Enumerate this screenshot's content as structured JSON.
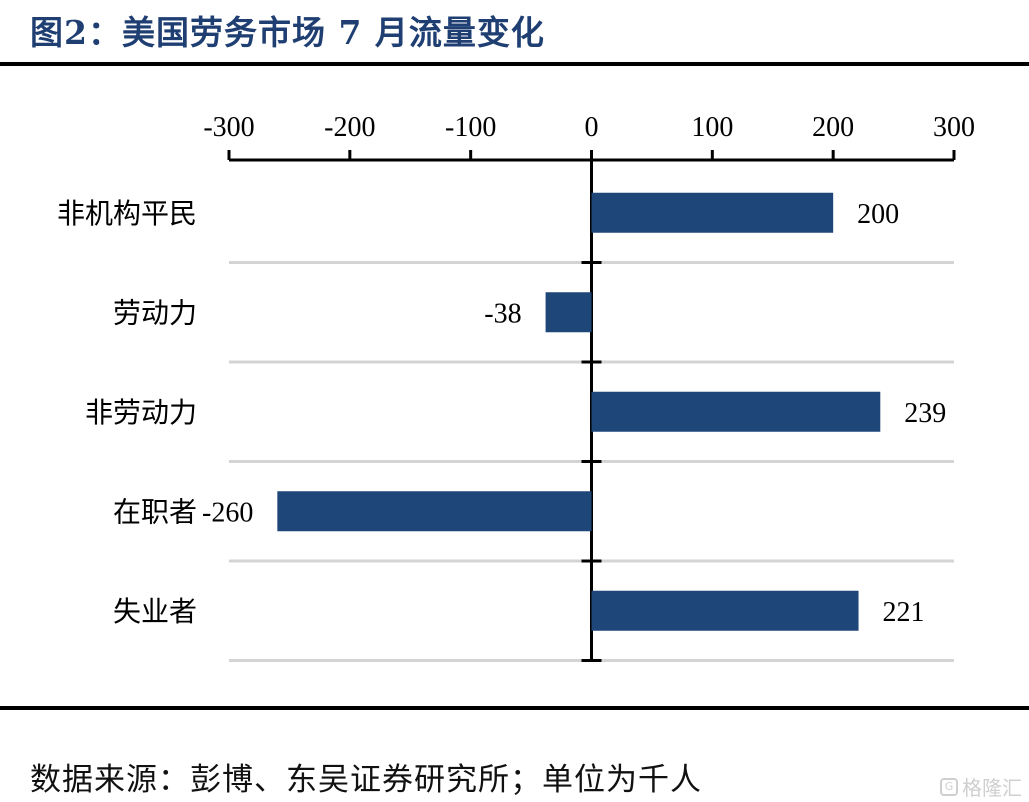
{
  "title": "图2：美国劳务市场 7 月流量变化",
  "source": "数据来源：彭博、东吴证券研究所；单位为千人",
  "watermark": "格隆汇",
  "chart_data": {
    "type": "bar",
    "orientation": "horizontal",
    "categories": [
      "非机构平民",
      "劳动力",
      "非劳动力",
      "在职者",
      "失业者"
    ],
    "values": [
      200,
      -38,
      239,
      -260,
      221
    ],
    "data_labels": [
      "200",
      "-38",
      "239",
      "-260",
      "221"
    ],
    "xlim": [
      -300,
      300
    ],
    "xticks": [
      -300,
      -200,
      -100,
      0,
      100,
      200,
      300
    ],
    "xtick_labels": [
      "-300",
      "-200",
      "-100",
      "0",
      "100",
      "200",
      "300"
    ],
    "axis_position": "top",
    "grid": "horizontal separators",
    "bar_color": "#1f4678"
  }
}
